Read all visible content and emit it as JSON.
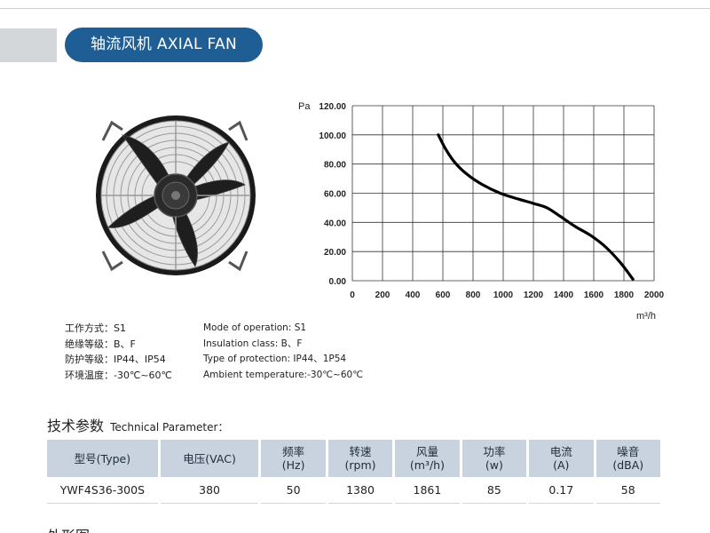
{
  "header": {
    "title": "轴流风机 AXIAL FAN"
  },
  "chart_data": {
    "type": "line",
    "ylabel": "Pa",
    "xlabel": "m³/h",
    "xlim": [
      0,
      2000
    ],
    "ylim": [
      0,
      120
    ],
    "x_ticks": [
      "0",
      "200",
      "400",
      "600",
      "800",
      "1000",
      "1200",
      "1400",
      "1600",
      "1800",
      "2000"
    ],
    "y_ticks": [
      "0.00",
      "20.00",
      "40.00",
      "60.00",
      "80.00",
      "100.00",
      "120.00"
    ],
    "grid": true,
    "series": [
      {
        "x": [
          570,
          620,
          680,
          760,
          860,
          980,
          1100,
          1200,
          1290,
          1380,
          1480,
          1580,
          1680,
          1780,
          1860
        ],
        "y": [
          100,
          90,
          81,
          73,
          66,
          60,
          56,
          53,
          50,
          44,
          37,
          31,
          23,
          12,
          1
        ]
      }
    ]
  },
  "specs_cn": [
    "工作方式：S1",
    "绝缘等级：B、F",
    "防护等级：IP44、IP54",
    "环境温度：-30℃~60℃"
  ],
  "specs_en": [
    "Mode of operation: S1",
    "Insulation class: B、F",
    "Type of protection: IP44、1P54",
    "Ambient temperature:-30℃~60℃"
  ],
  "section": {
    "title_cn": "技术参数",
    "title_en": "Technical Parameter："
  },
  "table": {
    "headers": [
      [
        "型号(Type)"
      ],
      [
        "电压(VAC)"
      ],
      [
        "频率",
        "(Hz)"
      ],
      [
        "转速",
        "(rpm)"
      ],
      [
        "风量",
        "(m³/h)"
      ],
      [
        "功率",
        "(w)"
      ],
      [
        "电流",
        "(A)"
      ],
      [
        "噪音",
        "(dBA)"
      ]
    ],
    "rows": [
      [
        "YWF4S36-300S",
        "380",
        "50",
        "1380",
        "1861",
        "85",
        "0.17",
        "58"
      ]
    ]
  },
  "next_section": {
    "title_cn": "外形图"
  }
}
